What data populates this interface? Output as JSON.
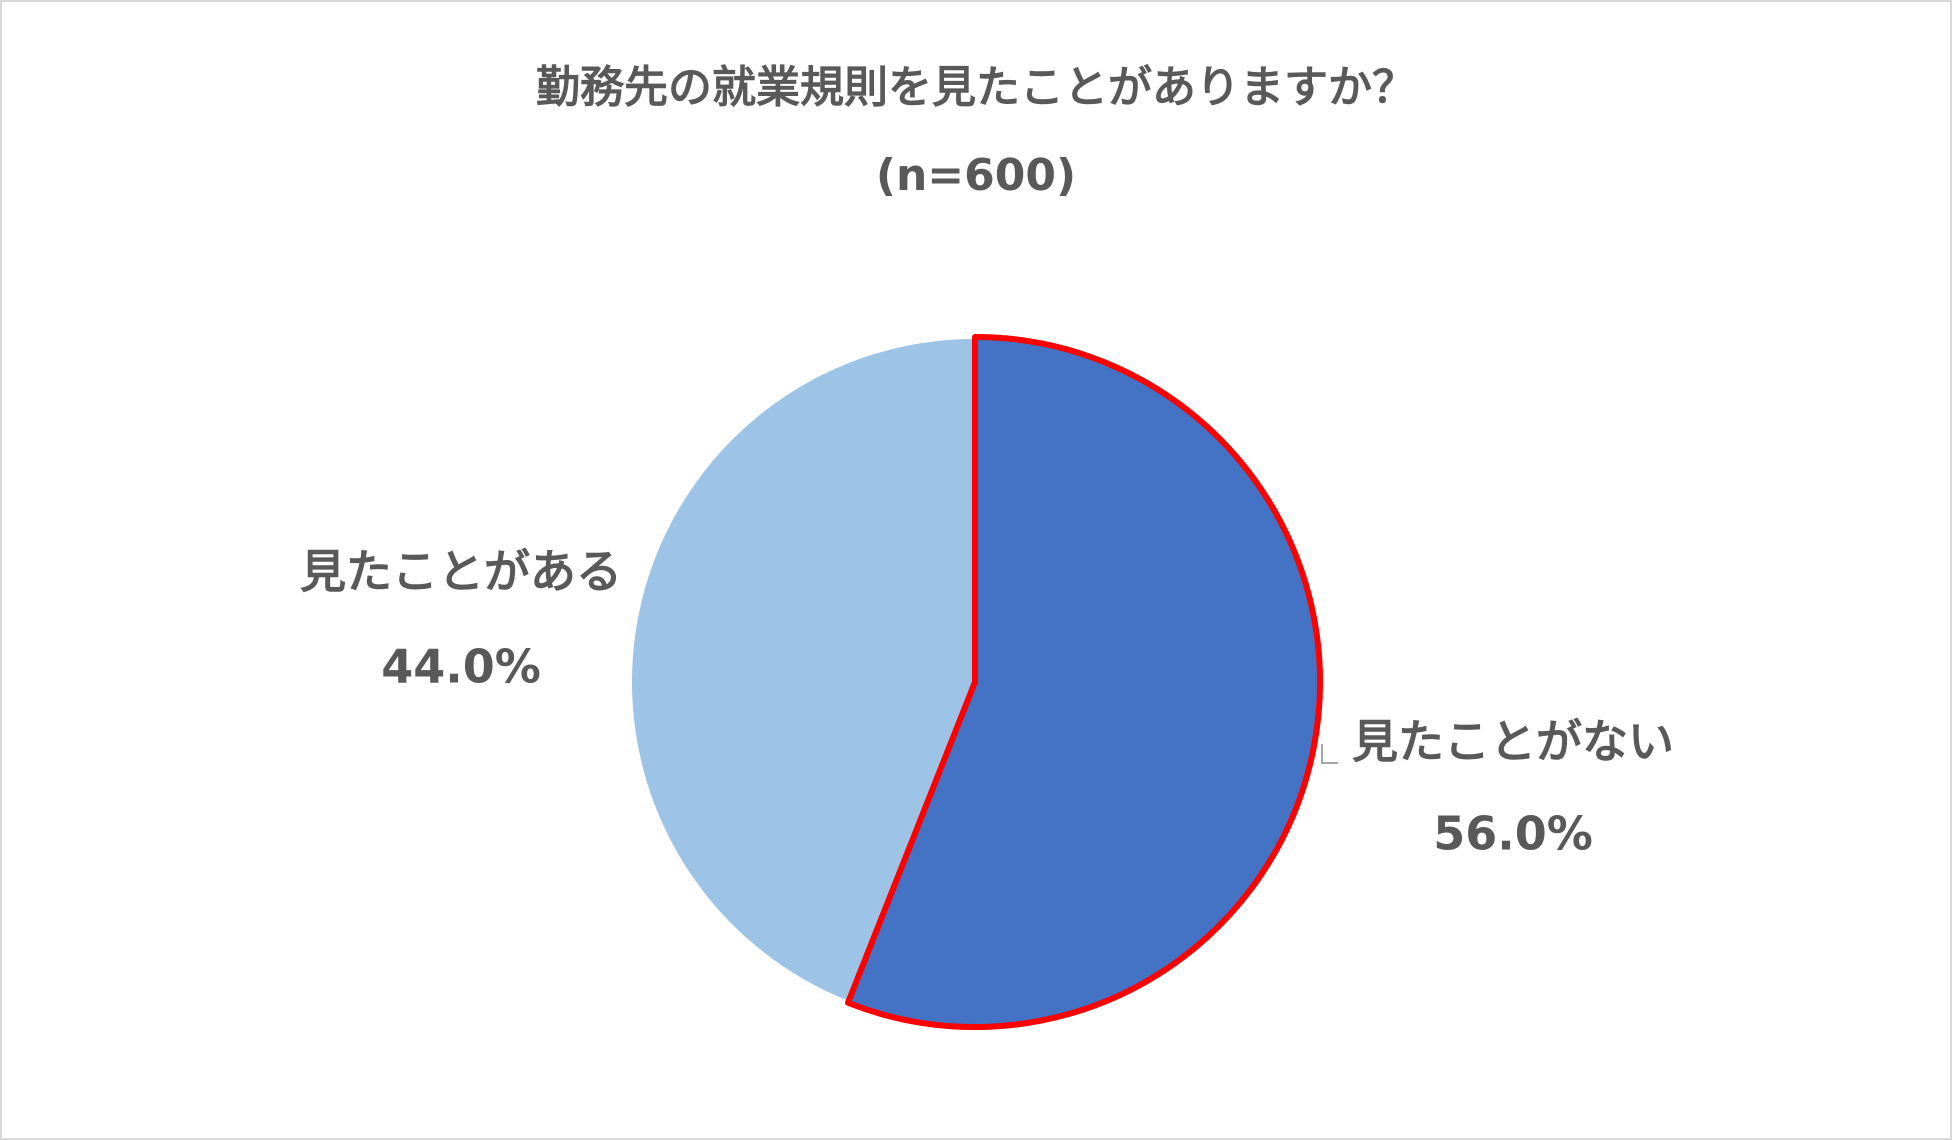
{
  "chart_data": {
    "type": "pie",
    "title": "勤務先の就業規則を見たことがありますか？",
    "subtitle": "(n=600)",
    "categories": [
      "見たことがない",
      "見たことがある"
    ],
    "values": [
      56.0,
      44.0
    ],
    "value_labels": [
      "56.0%",
      "44.0%"
    ],
    "colors": [
      "#4472c4",
      "#9dc3e6"
    ],
    "edgecolors": [
      "#ff0000",
      "#ffffff"
    ]
  }
}
